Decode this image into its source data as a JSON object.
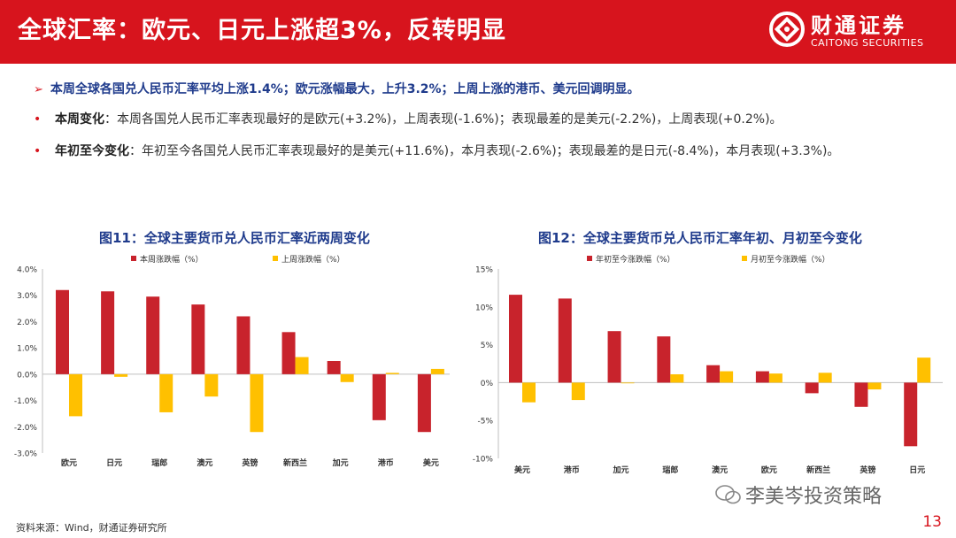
{
  "header": {
    "title": "全球汇率：欧元、日元上涨超3%，反转明显",
    "brand_cn": "财通证券",
    "brand_en": "CAITONG SECURITIES"
  },
  "summary": {
    "arrow": "➢",
    "text": "本周全球各国兑人民币汇率平均上涨1.4%；欧元涨幅最大，上升3.2%；上周上涨的港币、美元回调明显。"
  },
  "bullets": [
    {
      "dot": "•",
      "label": "本周变化",
      "text": "：本周各国兑人民币汇率表现最好的是欧元(+3.2%)，上周表现(-1.6%)；表现最差的是美元(-2.2%)，上周表现(+0.2%)。"
    },
    {
      "dot": "•",
      "label": "年初至今变化",
      "text": "：年初至今各国兑人民币汇率表现最好的是美元(+11.6%)，本月表现(-2.6%)；表现最差的是日元(-8.4%)，本月表现(+3.3%)。"
    }
  ],
  "colors": {
    "red": "#c8232c",
    "yellow": "#ffc000",
    "brand": "#d7141d",
    "title_blue": "#1f3b8c"
  },
  "chart_data": [
    {
      "type": "bar",
      "title": "图11：全球主要货币兑人民币汇率近两周变化",
      "categories": [
        "欧元",
        "日元",
        "瑞郎",
        "澳元",
        "英镑",
        "新西兰",
        "加元",
        "港币",
        "美元"
      ],
      "series": [
        {
          "name": "本周涨跌幅（%）",
          "values": [
            3.2,
            3.15,
            2.95,
            2.65,
            2.2,
            1.6,
            0.5,
            -1.75,
            -2.2
          ]
        },
        {
          "name": "上周涨跌幅（%）",
          "values": [
            -1.6,
            -0.1,
            -1.45,
            -0.85,
            -2.2,
            0.65,
            -0.3,
            0.05,
            0.2
          ]
        }
      ],
      "ylim": [
        -3.0,
        4.0
      ],
      "yticks": [
        "4.0%",
        "3.0%",
        "2.0%",
        "1.0%",
        "0.0%",
        "-1.0%",
        "-2.0%",
        "-3.0%"
      ],
      "legend": "top",
      "grid": false
    },
    {
      "type": "bar",
      "title": "图12：全球主要货币兑人民币汇率年初、月初至今变化",
      "categories": [
        "美元",
        "港币",
        "加元",
        "瑞郎",
        "澳元",
        "欧元",
        "新西兰",
        "英镑",
        "日元"
      ],
      "series": [
        {
          "name": "年初至今涨跌幅（%）",
          "values": [
            11.6,
            11.1,
            6.8,
            6.1,
            2.3,
            1.5,
            -1.4,
            -3.2,
            -8.4
          ]
        },
        {
          "name": "月初至今涨跌幅（%）",
          "values": [
            -2.6,
            -2.3,
            0.0,
            1.1,
            1.5,
            1.2,
            1.3,
            -0.9,
            3.3
          ]
        }
      ],
      "ylim": [
        -10,
        15
      ],
      "yticks": [
        "15%",
        "10%",
        "5%",
        "0%",
        "-5%",
        "-10%"
      ],
      "legend": "top",
      "grid": false
    }
  ],
  "footer": {
    "source": "资料来源：Wind，财通证券研究所",
    "watermark": "李美岑投资策略",
    "page": "13"
  }
}
